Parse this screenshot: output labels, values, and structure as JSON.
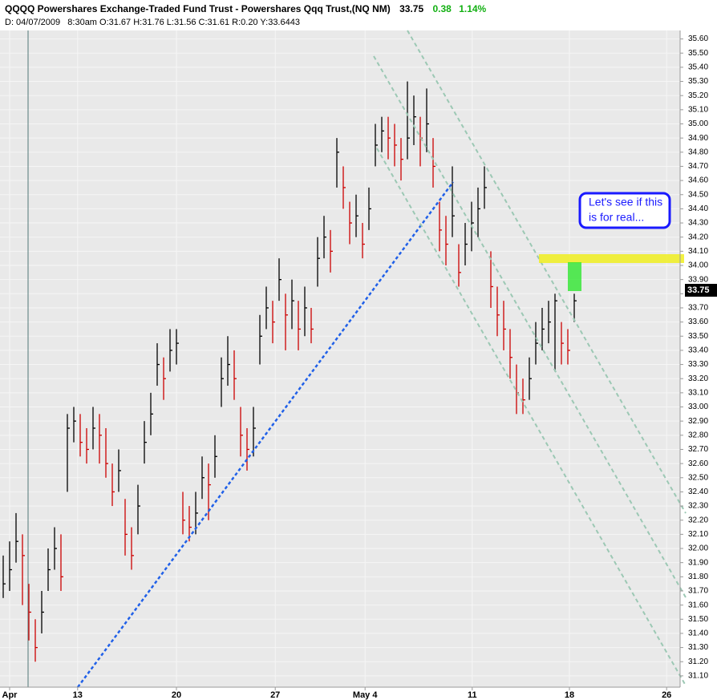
{
  "header": {
    "title": "QQQQ Powershares Exchange-Traded Fund Trust - Powershares Qqq Trust,(NQ NM)",
    "last": "33.75",
    "change": "0.38",
    "change_pct": "1.14%",
    "info": "D: 04/07/2009   8:30am O:31.67 H:31.76 L:31.56 C:31.61 R:0.20 Y:33.6443"
  },
  "chart_data": {
    "type": "ohlc",
    "x": [
      0,
      1,
      2,
      3,
      4,
      5,
      6,
      7,
      8,
      9,
      10,
      11,
      12,
      13,
      14,
      15,
      16,
      17,
      18,
      19,
      20,
      21,
      22,
      23,
      24,
      25,
      26,
      27,
      28,
      29,
      30,
      31,
      32,
      33,
      34,
      35,
      36,
      37,
      38,
      39,
      40,
      41,
      42,
      43,
      44,
      45,
      46,
      47,
      48,
      49,
      50,
      51,
      52,
      53,
      54,
      55,
      56,
      57,
      58,
      59,
      60,
      61,
      62,
      63,
      64,
      65,
      66,
      67,
      68,
      69,
      70,
      71,
      72,
      73,
      74,
      75,
      76,
      77,
      78,
      79,
      80,
      81,
      82,
      83,
      84,
      85,
      86,
      87,
      88,
      89
    ],
    "high": [
      31.95,
      32.05,
      32.25,
      32.1,
      31.75,
      31.5,
      31.7,
      32.0,
      32.15,
      32.1,
      32.95,
      33.0,
      32.95,
      32.85,
      33.0,
      32.95,
      32.85,
      32.6,
      32.7,
      32.35,
      32.15,
      32.45,
      32.9,
      33.1,
      33.45,
      33.35,
      33.55,
      33.55,
      32.4,
      32.3,
      32.4,
      32.65,
      32.6,
      32.8,
      33.35,
      33.5,
      33.4,
      33.0,
      32.85,
      33.0,
      33.65,
      33.85,
      33.75,
      34.05,
      33.8,
      33.9,
      33.75,
      33.85,
      33.7,
      34.2,
      34.35,
      34.25,
      34.9,
      34.7,
      34.45,
      34.5,
      34.3,
      34.55,
      35.0,
      35.05,
      35.05,
      35.0,
      34.9,
      35.3,
      35.2,
      35.05,
      35.25,
      34.9,
      34.45,
      34.35,
      34.7,
      34.15,
      34.3,
      34.45,
      34.55,
      34.7,
      34.1,
      33.85,
      33.75,
      33.55,
      33.3,
      33.2,
      33.35,
      33.6,
      33.7,
      33.75,
      33.8,
      33.6,
      33.55,
      33.8
    ],
    "low": [
      31.65,
      31.7,
      31.9,
      31.6,
      31.35,
      31.2,
      31.4,
      31.7,
      31.85,
      31.7,
      32.4,
      32.75,
      32.65,
      32.6,
      32.7,
      32.6,
      32.5,
      32.3,
      32.4,
      31.95,
      31.85,
      32.1,
      32.6,
      32.8,
      33.15,
      33.05,
      33.25,
      33.3,
      32.1,
      32.05,
      32.1,
      32.35,
      32.2,
      32.5,
      33.0,
      33.15,
      33.05,
      32.65,
      32.55,
      32.65,
      33.3,
      33.55,
      33.45,
      33.75,
      33.4,
      33.55,
      33.4,
      33.5,
      33.45,
      33.85,
      34.05,
      33.95,
      34.55,
      34.4,
      34.15,
      34.2,
      34.05,
      34.25,
      34.7,
      34.8,
      34.75,
      34.7,
      34.6,
      34.75,
      34.85,
      34.7,
      34.8,
      34.55,
      34.1,
      34.0,
      34.2,
      33.85,
      34.0,
      34.1,
      34.2,
      34.4,
      33.7,
      33.5,
      33.4,
      33.2,
      32.95,
      32.95,
      33.05,
      33.3,
      33.4,
      33.45,
      33.25,
      33.3,
      33.3,
      33.6
    ],
    "close": [
      31.75,
      31.85,
      32.05,
      31.95,
      31.55,
      31.3,
      31.55,
      31.85,
      32.0,
      31.8,
      32.85,
      32.9,
      32.75,
      32.7,
      32.85,
      32.8,
      32.6,
      32.4,
      32.55,
      32.1,
      31.95,
      32.3,
      32.75,
      32.95,
      33.3,
      33.2,
      33.4,
      33.45,
      32.2,
      32.15,
      32.25,
      32.5,
      32.45,
      32.65,
      33.2,
      33.3,
      33.2,
      32.8,
      32.7,
      32.85,
      33.5,
      33.7,
      33.6,
      33.9,
      33.65,
      33.75,
      33.55,
      33.7,
      33.55,
      34.05,
      34.2,
      34.1,
      34.8,
      34.55,
      34.3,
      34.35,
      34.15,
      34.4,
      34.85,
      34.95,
      34.9,
      34.85,
      34.75,
      34.9,
      35.05,
      34.9,
      35.0,
      34.7,
      34.25,
      34.15,
      34.35,
      33.95,
      34.15,
      34.3,
      34.4,
      34.55,
      33.85,
      33.65,
      33.55,
      33.35,
      33.1,
      33.05,
      33.2,
      33.45,
      33.55,
      33.6,
      33.75,
      33.45,
      33.4,
      33.75
    ],
    "up_color": "#000000",
    "down_color": "#cc0000",
    "xlim": [
      -0.5,
      105.5
    ],
    "xticks": [
      {
        "value": 1,
        "label": "Apr"
      },
      {
        "value": 11.6,
        "label": "13"
      },
      {
        "value": 27,
        "label": "20"
      },
      {
        "value": 42.4,
        "label": "27"
      },
      {
        "value": 56.4,
        "label": "May  4"
      },
      {
        "value": 73.1,
        "label": "11"
      },
      {
        "value": 88.25,
        "label": "18"
      },
      {
        "value": 103.4,
        "label": "26"
      }
    ],
    "ylim": [
      31.02,
      35.66
    ],
    "yticks": [
      {
        "value": 31.1,
        "label": "31.10"
      },
      {
        "value": 31.2,
        "label": "31.20"
      },
      {
        "value": 31.3,
        "label": "31.30"
      },
      {
        "value": 31.4,
        "label": "31.40"
      },
      {
        "value": 31.5,
        "label": "31.50"
      },
      {
        "value": 31.6,
        "label": "31.60"
      },
      {
        "value": 31.7,
        "label": "31.70"
      },
      {
        "value": 31.8,
        "label": "31.80"
      },
      {
        "value": 31.9,
        "label": "31.90"
      },
      {
        "value": 32.0,
        "label": "32.00"
      },
      {
        "value": 32.1,
        "label": "32.10"
      },
      {
        "value": 32.2,
        "label": "32.20"
      },
      {
        "value": 32.3,
        "label": "32.30"
      },
      {
        "value": 32.4,
        "label": "32.40"
      },
      {
        "value": 32.5,
        "label": "32.50"
      },
      {
        "value": 32.6,
        "label": "32.60"
      },
      {
        "value": 32.7,
        "label": "32.70"
      },
      {
        "value": 32.8,
        "label": "32.80"
      },
      {
        "value": 32.9,
        "label": "32.90"
      },
      {
        "value": 33.0,
        "label": "33.00"
      },
      {
        "value": 33.1,
        "label": "33.10"
      },
      {
        "value": 33.2,
        "label": "33.20"
      },
      {
        "value": 33.3,
        "label": "33.30"
      },
      {
        "value": 33.4,
        "label": "33.40"
      },
      {
        "value": 33.5,
        "label": "33.50"
      },
      {
        "value": 33.6,
        "label": "33.60"
      },
      {
        "value": 33.7,
        "label": "33.70"
      },
      {
        "value": 33.8,
        "label": "33.80"
      },
      {
        "value": 33.9,
        "label": "33.90"
      },
      {
        "value": 34.0,
        "label": "34.00"
      },
      {
        "value": 34.1,
        "label": "34.10"
      },
      {
        "value": 34.2,
        "label": "34.20"
      },
      {
        "value": 34.3,
        "label": "34.30"
      },
      {
        "value": 34.4,
        "label": "34.40"
      },
      {
        "value": 34.5,
        "label": "34.50"
      },
      {
        "value": 34.6,
        "label": "34.60"
      },
      {
        "value": 34.7,
        "label": "34.70"
      },
      {
        "value": 34.8,
        "label": "34.80"
      },
      {
        "value": 34.9,
        "label": "34.90"
      },
      {
        "value": 35.0,
        "label": "35.00"
      },
      {
        "value": 35.1,
        "label": "35.10"
      },
      {
        "value": 35.2,
        "label": "35.20"
      },
      {
        "value": 35.3,
        "label": "35.30"
      },
      {
        "value": 35.4,
        "label": "35.40"
      },
      {
        "value": 35.5,
        "label": "35.50"
      },
      {
        "value": 35.6,
        "label": "35.60"
      }
    ],
    "grid": true,
    "annotations": [
      "Let's see if this",
      "is for real..."
    ]
  }
}
